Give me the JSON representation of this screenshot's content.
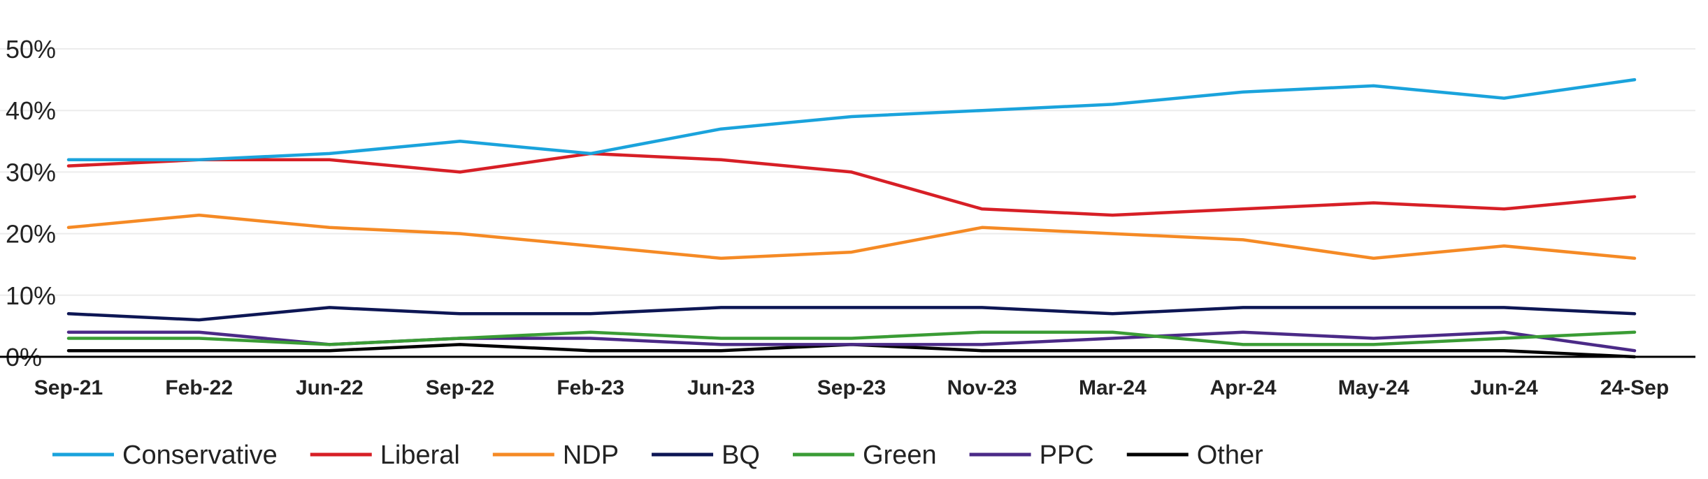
{
  "chart_data": {
    "type": "line",
    "title": "",
    "xlabel": "",
    "ylabel": "",
    "ylim": [
      0,
      50
    ],
    "yticks": [
      0,
      10,
      20,
      30,
      40,
      50
    ],
    "ytick_labels": [
      "0%",
      "10%",
      "20%",
      "30%",
      "40%",
      "50%"
    ],
    "grid": true,
    "legend_position": "bottom",
    "categories": [
      "Sep-21",
      "Feb-22",
      "Jun-22",
      "Sep-22",
      "Feb-23",
      "Jun-23",
      "Sep-23",
      "Nov-23",
      "Mar-24",
      "Apr-24",
      "May-24",
      "Jun-24",
      "24-Sep"
    ],
    "series": [
      {
        "name": "Conservative",
        "color": "#1aa3dc",
        "values": [
          32,
          32,
          33,
          35,
          33,
          37,
          39,
          40,
          41,
          43,
          44,
          42,
          45
        ]
      },
      {
        "name": "Liberal",
        "color": "#d71f26",
        "values": [
          31,
          32,
          32,
          30,
          33,
          32,
          30,
          24,
          23,
          24,
          25,
          24,
          26
        ]
      },
      {
        "name": "NDP",
        "color": "#f58a25",
        "values": [
          21,
          23,
          21,
          20,
          18,
          16,
          17,
          21,
          20,
          19,
          16,
          18,
          16
        ]
      },
      {
        "name": "BQ",
        "color": "#0d1654",
        "values": [
          7,
          6,
          8,
          7,
          7,
          8,
          8,
          8,
          7,
          8,
          8,
          8,
          7
        ]
      },
      {
        "name": "Green",
        "color": "#3a9c35",
        "values": [
          3,
          3,
          2,
          3,
          4,
          3,
          3,
          4,
          4,
          2,
          2,
          3,
          4
        ]
      },
      {
        "name": "PPC",
        "color": "#4b2a87",
        "values": [
          4,
          4,
          2,
          3,
          3,
          2,
          2,
          2,
          3,
          4,
          3,
          4,
          1
        ]
      },
      {
        "name": "Other",
        "color": "#000000",
        "values": [
          1,
          1,
          1,
          2,
          1,
          1,
          2,
          1,
          1,
          1,
          1,
          1,
          0
        ]
      }
    ]
  }
}
